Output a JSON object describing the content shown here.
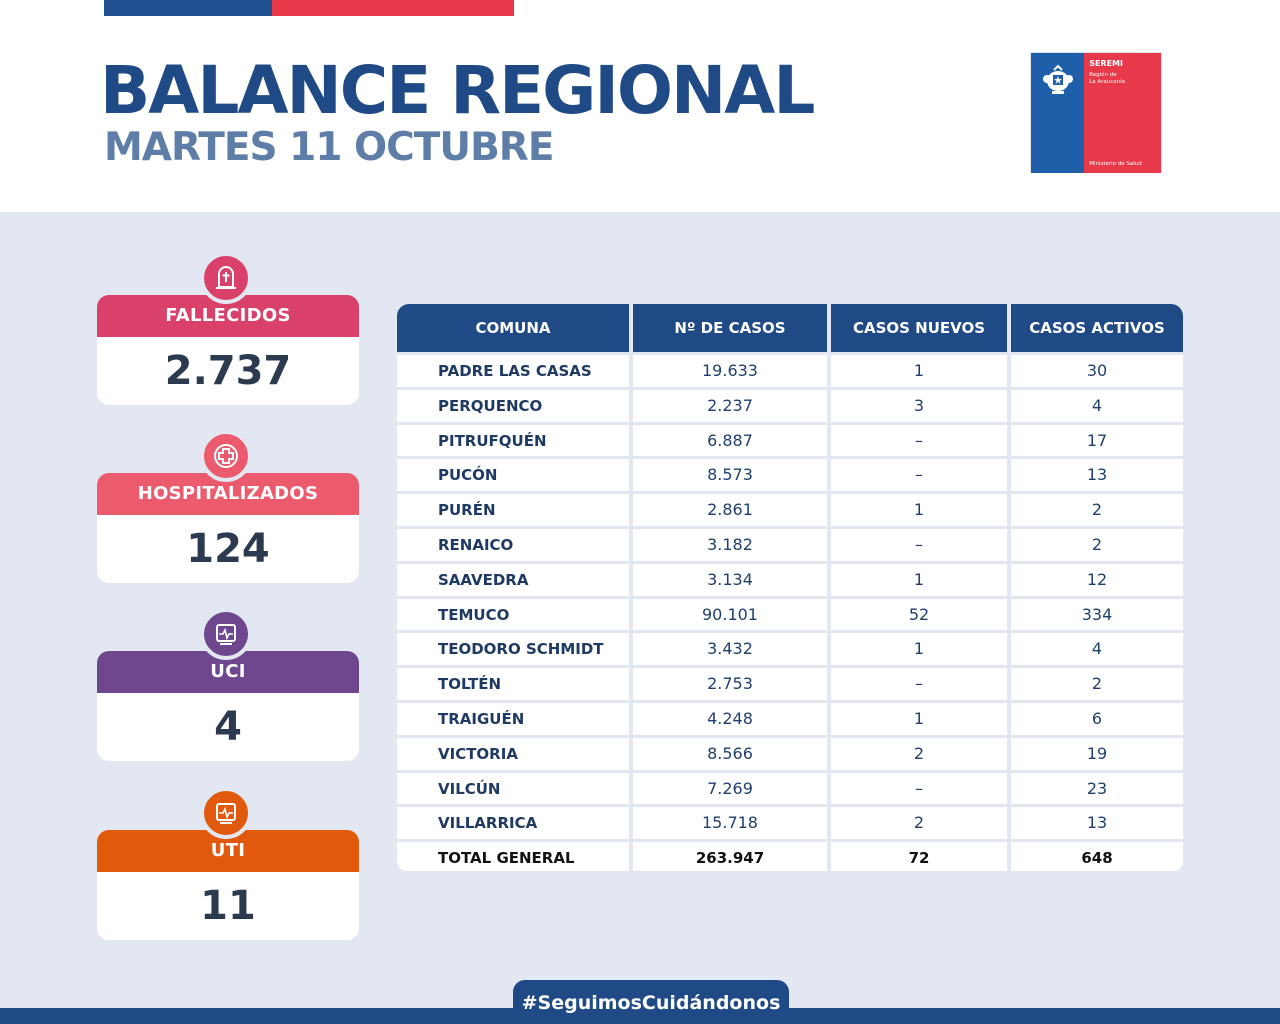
{
  "header": {
    "title": "BALANCE REGIONAL",
    "subtitle": "MARTES 11 OCTUBRE"
  },
  "logo": {
    "seremi": "SEREMI",
    "region_line1": "Región de",
    "region_line2": "La Araucanía",
    "ministry": "Ministerio de Salud"
  },
  "stats": [
    {
      "label": "FALLECIDOS",
      "value": "2.737",
      "color": "#d9406a",
      "icon": "tombstone-icon"
    },
    {
      "label": "HOSPITALIZADOS",
      "value": "124",
      "color": "#ec5a6e",
      "icon": "medical-cross-icon"
    },
    {
      "label": "UCI",
      "value": "4",
      "color": "#6e478e",
      "icon": "heart-monitor-icon"
    },
    {
      "label": "UTI",
      "value": "11",
      "color": "#e1590c",
      "icon": "heart-monitor-icon"
    }
  ],
  "table": {
    "headers": [
      "COMUNA",
      "Nº DE CASOS",
      "CASOS NUEVOS",
      "CASOS ACTIVOS"
    ],
    "rows": [
      [
        "PADRE LAS CASAS",
        "19.633",
        "1",
        "30"
      ],
      [
        "PERQUENCO",
        "2.237",
        "3",
        "4"
      ],
      [
        "PITRUFQUÉN",
        "6.887",
        "–",
        "17"
      ],
      [
        "PUCÓN",
        "8.573",
        "–",
        "13"
      ],
      [
        "PURÉN",
        "2.861",
        "1",
        "2"
      ],
      [
        "RENAICO",
        "3.182",
        "–",
        "2"
      ],
      [
        "SAAVEDRA",
        "3.134",
        "1",
        "12"
      ],
      [
        "TEMUCO",
        "90.101",
        "52",
        "334"
      ],
      [
        "TEODORO SCHMIDT",
        "3.432",
        "1",
        "4"
      ],
      [
        "TOLTÉN",
        "2.753",
        "–",
        "2"
      ],
      [
        "TRAIGUÉN",
        "4.248",
        "1",
        "6"
      ],
      [
        "VICTORIA",
        "8.566",
        "2",
        "19"
      ],
      [
        "VILCÚN",
        "7.269",
        "–",
        "23"
      ],
      [
        "VILLARRICA",
        "15.718",
        "2",
        "13"
      ]
    ],
    "total": [
      "TOTAL GENERAL",
      "263.947",
      "72",
      "648"
    ]
  },
  "footer": {
    "hashtag": "#SeguimosCuidándonos"
  }
}
